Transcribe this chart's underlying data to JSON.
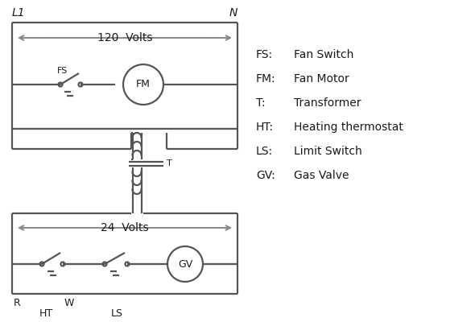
{
  "background": "#ffffff",
  "line_color": "#555555",
  "text_color": "#1a1a1a",
  "legend": {
    "FS": "Fan Switch",
    "FM": "Fan Motor",
    "T": "Transformer",
    "HT": "Heating thermostat",
    "LS": "Limit Switch",
    "GV": "Gas Valve"
  },
  "lw": 1.6
}
